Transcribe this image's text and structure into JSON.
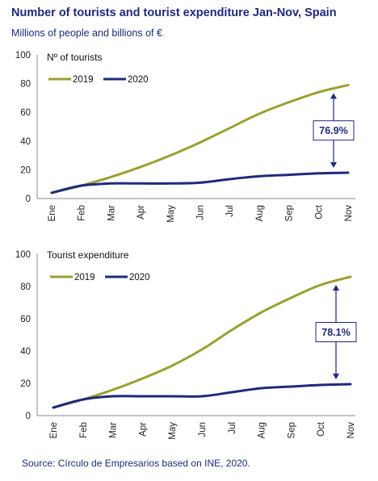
{
  "title": "Number of tourists and tourist expenditure Jan-Nov, Spain",
  "subtitle": "Millions of people and billions of €",
  "source": "Source: Círculo de Empresarios based on INE, 2020.",
  "colors": {
    "y2019": "#9aa030",
    "y2020": "#1f2a7a",
    "text": "#1f2a7a"
  },
  "chart_data": [
    {
      "type": "line",
      "title": "Nº of tourists",
      "categories": [
        "Ene",
        "Feb",
        "Mar",
        "Apr",
        "May",
        "Jun",
        "Jul",
        "Aug",
        "Sep",
        "Oct",
        "Nov"
      ],
      "ylim": [
        0,
        100
      ],
      "yticks": [
        0,
        20,
        40,
        60,
        80,
        100
      ],
      "series": [
        {
          "name": "2019",
          "values": [
            4,
            9,
            15,
            22,
            30,
            39,
            49,
            59,
            67,
            74,
            79
          ]
        },
        {
          "name": "2020",
          "values": [
            4,
            9,
            10.5,
            10.5,
            10.5,
            11,
            13.5,
            15.5,
            16.5,
            17.5,
            18
          ]
        }
      ],
      "annotation": "76.9%",
      "legend": "top-left",
      "grid": false
    },
    {
      "type": "line",
      "title": "Tourist expenditure",
      "categories": [
        "Ene",
        "Feb",
        "Mar",
        "Apr",
        "May",
        "Jun",
        "Jul",
        "Aug",
        "Sep",
        "Oct",
        "Nov"
      ],
      "ylim": [
        0,
        100
      ],
      "yticks": [
        0,
        20,
        40,
        60,
        80,
        100
      ],
      "series": [
        {
          "name": "2019",
          "values": [
            5,
            10,
            16,
            23,
            31,
            41,
            53,
            64,
            73,
            81,
            86
          ]
        },
        {
          "name": "2020",
          "values": [
            5,
            10,
            12,
            12,
            12,
            12,
            14.5,
            17,
            18,
            19,
            19.5
          ]
        }
      ],
      "annotation": "78.1%",
      "legend": "top-left",
      "grid": false
    }
  ]
}
